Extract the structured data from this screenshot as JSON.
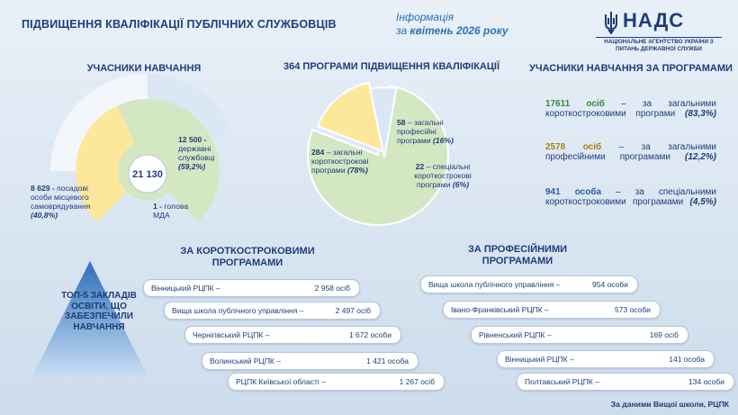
{
  "header": {
    "title": "ПІДВИЩЕННЯ КВАЛІФІКАЦІЇ ПУБЛІЧНИХ СЛУЖБОВЦІВ",
    "info_line1": "Інформація",
    "info_prefix": "за ",
    "info_period": "квітень 2026 року"
  },
  "logo": {
    "word": "НАДС",
    "sub": "НАЦІОНАЛЬНЕ АГЕНТСТВО УКРАЇНИ З ПИТАНЬ ДЕРЖАВНОЇ СЛУЖБИ",
    "emblem_icon": "trident-icon"
  },
  "participants": {
    "heading": "УЧАСНИКИ НАВЧАННЯ",
    "total": "21 130",
    "civil": {
      "num": "12 500 -",
      "text": "державні службовці",
      "pct": "(59,2%)"
    },
    "local": {
      "num": "8 629 -",
      "text": "посадові особи місцевого самоврядування",
      "pct": "(40,8%)"
    },
    "head": {
      "num": "1 -",
      "text": "голова МДА"
    }
  },
  "programs": {
    "heading_num": "364",
    "heading_text": " ПРОГРАМИ ПІДВИЩЕННЯ КВАЛІФІКАЦІЇ",
    "general_short": {
      "num": "284",
      "text": " – загальні короткострокові програми ",
      "pct": "(78%)"
    },
    "general_prof": {
      "num": "58",
      "text": " – загальні професійні програми ",
      "pct": "(16%)"
    },
    "special": {
      "num": "22",
      "text": " – спеціальні короткострокові програми ",
      "pct": "(6%)"
    }
  },
  "by_program": {
    "heading": "УЧАСНИКИ НАВЧАННЯ ЗА ПРОГРАМАМИ",
    "items": [
      {
        "num": "17611 осіб",
        "text": " – за загальними короткостроковими програми ",
        "pct": "(83,3%)",
        "color": "#2e8b3a"
      },
      {
        "num": "2578 осіб",
        "text": " – за загальними професійними програмами ",
        "pct": "(12,2%)",
        "color": "#a3850f"
      },
      {
        "num": "941 особа",
        "text": " – за спеціальними короткостроковими програмами ",
        "pct": "(4,5%)",
        "color": "#2a5caa"
      }
    ]
  },
  "short_programs": {
    "heading": "ЗА КОРОТКОСТРОКОВИМИ ПРОГРАМАМИ",
    "rows": [
      {
        "name": "Вінницький РЦПК –",
        "value": "2 958 осіб"
      },
      {
        "name": "Вища школа публічного управління –",
        "value": "2 497 осіб"
      },
      {
        "name": "Чернігівський РЦПК –",
        "value": "1 672 особи"
      },
      {
        "name": "Волинський РЦПК –",
        "value": "1 421 особа"
      },
      {
        "name": "РЦПК Київської області –",
        "value": "1 267 осіб"
      }
    ]
  },
  "prof_programs": {
    "heading": "ЗА ПРОФЕСІЙНИМИ ПРОГРАМАМИ",
    "rows": [
      {
        "name": "Вища школа публічного управління –",
        "value": "954 особи"
      },
      {
        "name": "Івано-Франківський РЦПК –",
        "value": "573 особи"
      },
      {
        "name": "Рівненський РЦПК –",
        "value": "169 осіб"
      },
      {
        "name": "Вінницький РЦПК –",
        "value": "141 особа"
      },
      {
        "name": "Полтавський РЦПК –",
        "value": "134 особи"
      }
    ]
  },
  "top5_text": "ТОП-5 ЗАКЛАДІВ ОСВІТИ, ЩО ЗАБЕЗПЕЧИЛИ НАВЧАННЯ",
  "source": "За даними Вищої школи, РЦПК",
  "colors": {
    "navy": "#1f3d7a",
    "yellow": "#fce79a",
    "green": "#d3e7c3",
    "lightblue": "#dbe7f5",
    "green_text": "#2e8b3a"
  },
  "chart_data": [
    {
      "type": "pie",
      "title": "УЧАСНИКИ НАВЧАННЯ",
      "categories": [
        "державні службовці",
        "посадові особи місцевого самоврядування",
        "голова МДА"
      ],
      "values": [
        12500,
        8629,
        1
      ],
      "total": 21130
    },
    {
      "type": "pie",
      "title": "364 ПРОГРАМИ ПІДВИЩЕННЯ КВАЛІФІКАЦІЇ",
      "categories": [
        "загальні короткострокові програми",
        "загальні професійні програми",
        "спеціальні короткострокові програми"
      ],
      "values": [
        284,
        58,
        22
      ]
    },
    {
      "type": "bar",
      "title": "ЗА КОРОТКОСТРОКОВИМИ ПРОГРАМАМИ",
      "categories": [
        "Вінницький РЦПК",
        "Вища школа публічного управління",
        "Чернігівський РЦПК",
        "Волинський РЦПК",
        "РЦПК Київської області"
      ],
      "values": [
        2958,
        2497,
        1672,
        1421,
        1267
      ]
    },
    {
      "type": "bar",
      "title": "ЗА ПРОФЕСІЙНИМИ ПРОГРАМАМИ",
      "categories": [
        "Вища школа публічного управління",
        "Івано-Франківський РЦПК",
        "Рівненський РЦПК",
        "Вінницький РЦПК",
        "Полтавський РЦПК"
      ],
      "values": [
        954,
        573,
        169,
        141,
        134
      ]
    }
  ]
}
